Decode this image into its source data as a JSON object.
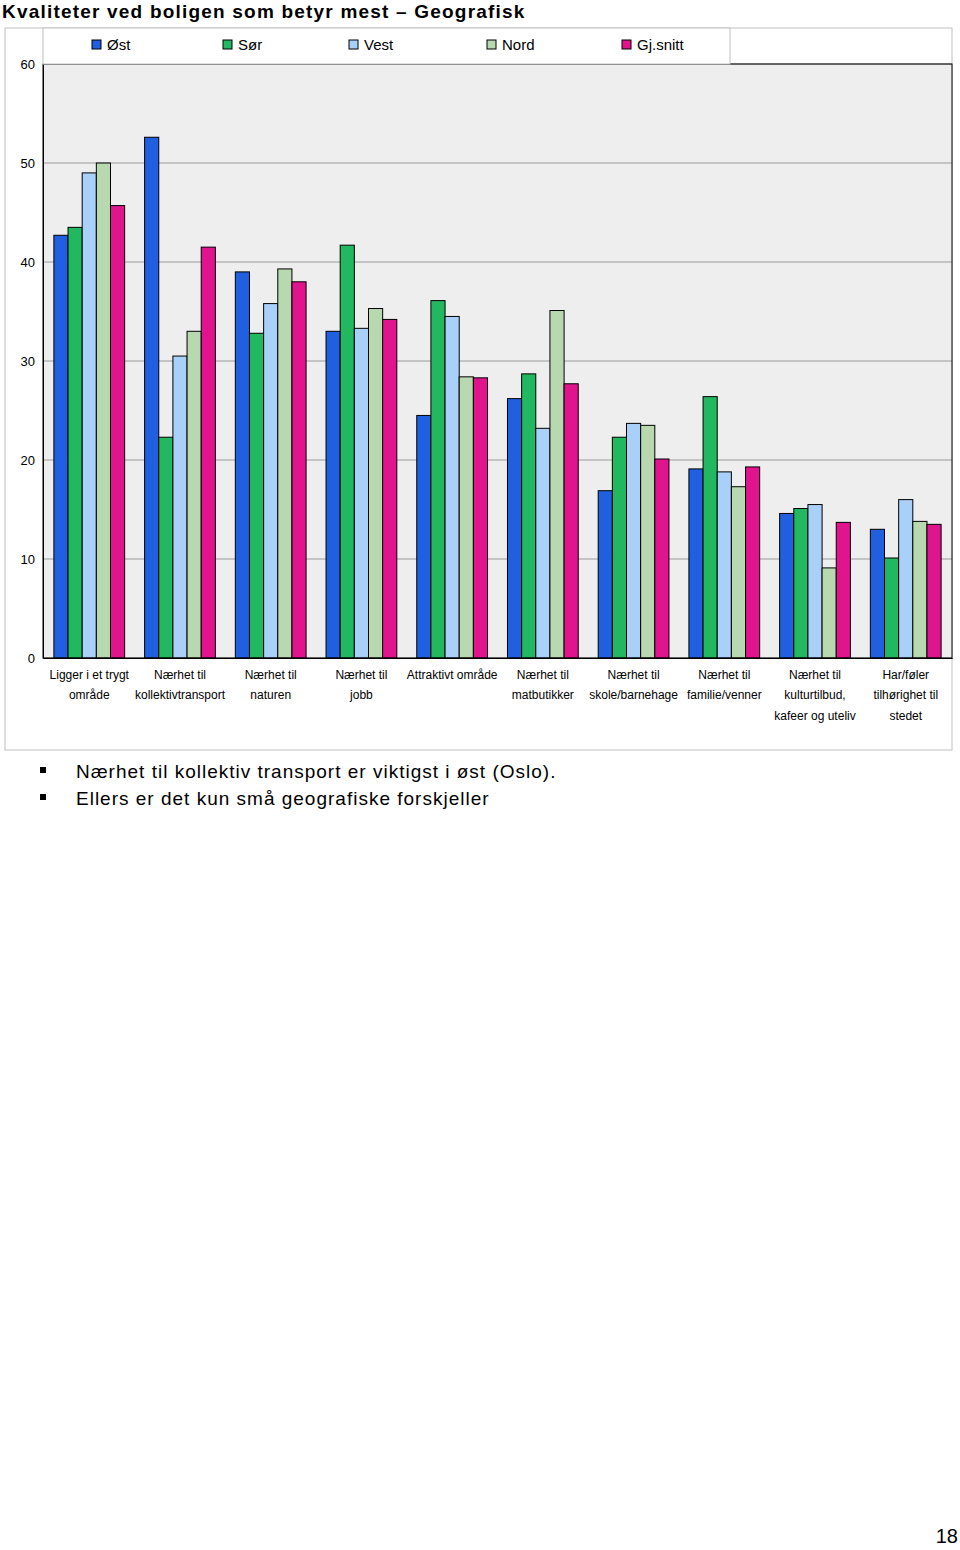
{
  "chart_data": {
    "type": "bar",
    "title": "Kvaliteter ved boligen som betyr mest – Geografisk",
    "categories": [
      "Ligger i et trygt\nområde",
      "Nærhet til\nkollektivtransport",
      "Nærhet til\nnaturen",
      "Nærhet til\njobb",
      "Attraktivt område",
      "Nærhet til\nmatbutikker",
      "Nærhet til\nskole/barnehage",
      "Nærhet til\nfamilie/venner",
      "Nærhet til\nkulturtilbud,\nkafeer og uteliv",
      "Har/føler\ntilhørighet til\nstedet"
    ],
    "series": [
      {
        "name": "Øst",
        "color": "#1f5fe0",
        "values": [
          42.7,
          52.6,
          39.0,
          33.0,
          24.5,
          26.2,
          16.9,
          19.1,
          14.6,
          13.0
        ]
      },
      {
        "name": "Sør",
        "color": "#22b860",
        "values": [
          43.5,
          22.3,
          32.8,
          41.7,
          36.1,
          28.7,
          22.3,
          26.4,
          15.1,
          10.1
        ]
      },
      {
        "name": "Vest",
        "color": "#a8d0f8",
        "values": [
          49.0,
          30.5,
          35.8,
          33.3,
          34.5,
          23.2,
          23.7,
          18.8,
          15.5,
          16.0
        ]
      },
      {
        "name": "Nord",
        "color": "#b8d8b0",
        "values": [
          50.0,
          33.0,
          39.3,
          35.3,
          28.4,
          35.1,
          23.5,
          17.3,
          9.1,
          13.8
        ]
      },
      {
        "name": "Gj.snitt",
        "color": "#e0148c",
        "values": [
          45.7,
          41.5,
          38.0,
          34.2,
          28.3,
          27.7,
          20.1,
          19.3,
          13.7,
          13.5
        ]
      }
    ],
    "ylim": [
      0,
      60
    ],
    "yticks": [
      0,
      10,
      20,
      30,
      40,
      50,
      60
    ],
    "grid": true,
    "legend": "top",
    "annotations": [
      "Nærhet til kollektiv transport er viktigst i øst (Oslo).",
      "Ellers er det kun små geografiske forskjeller"
    ],
    "page_number": "18"
  }
}
